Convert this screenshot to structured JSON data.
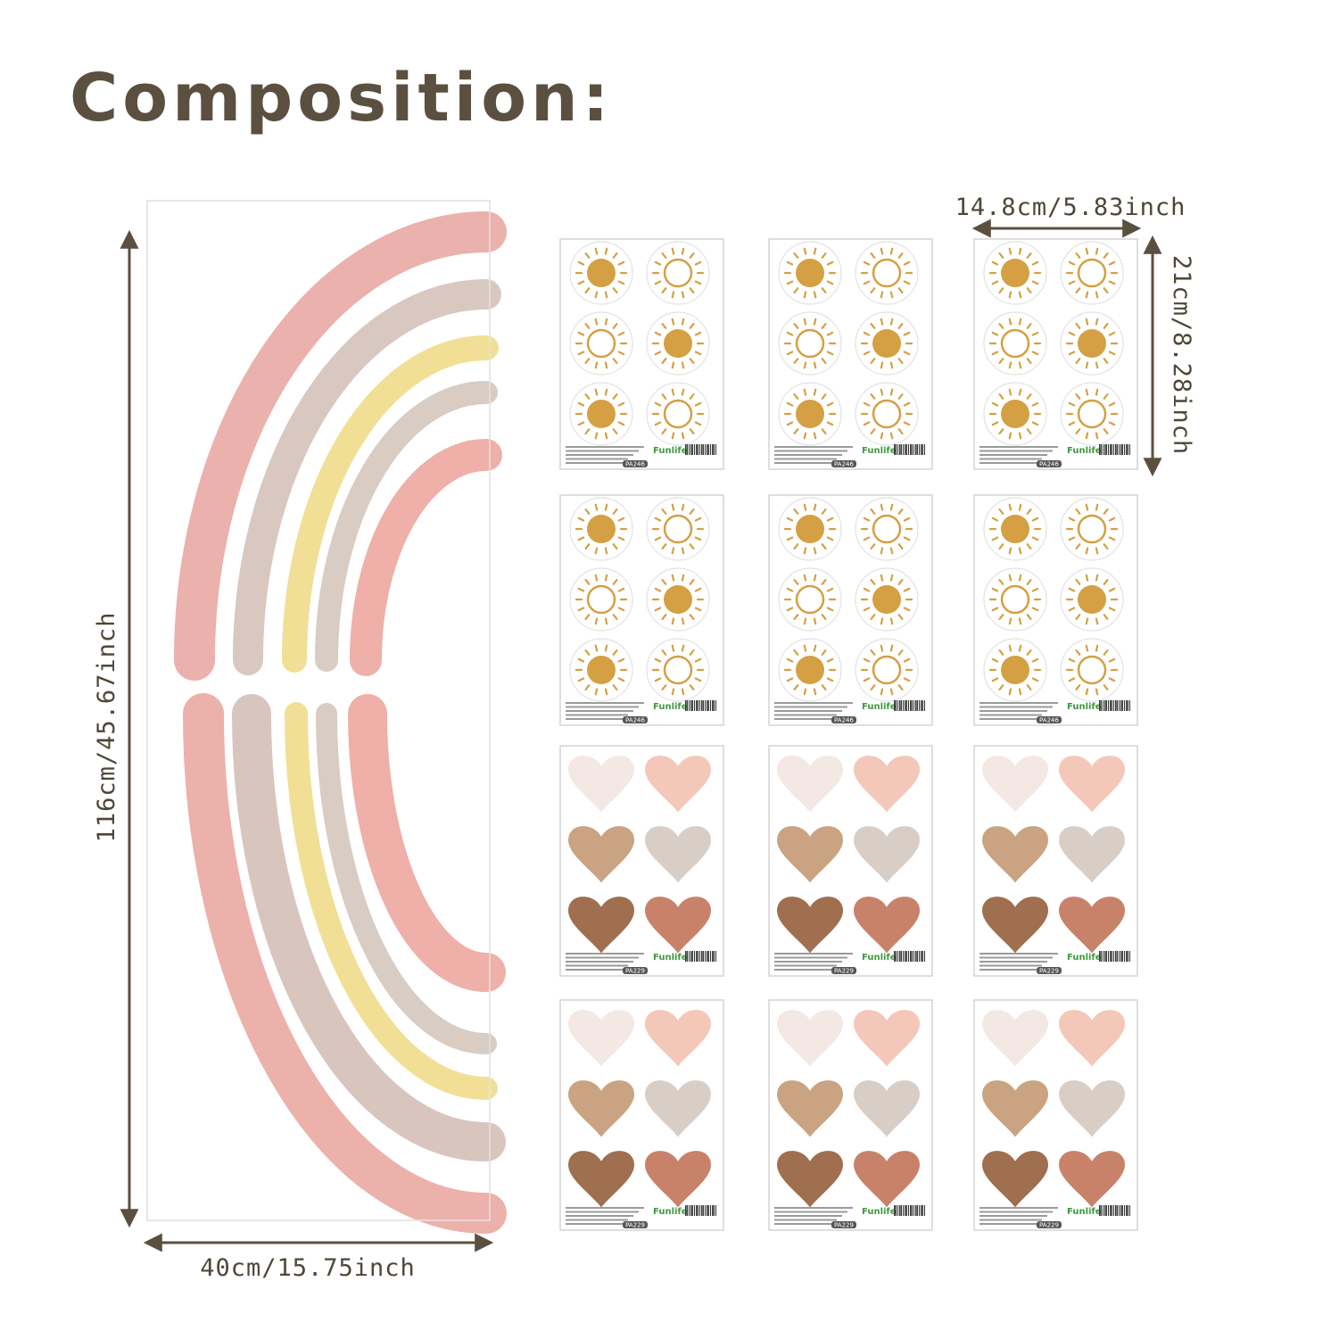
{
  "header": {
    "title": "Composition:"
  },
  "rainbow": {
    "height_label": "116cm/45.67inch",
    "width_label": "40cm/15.75inch"
  },
  "sheet": {
    "width_label": "14.8cm/5.83inch",
    "height_label": "21cm/8.28inch",
    "brand": "Funlife"
  },
  "sun_sheets": {
    "code": "PA246"
  },
  "heart_sheets": {
    "code": "PA229"
  }
}
